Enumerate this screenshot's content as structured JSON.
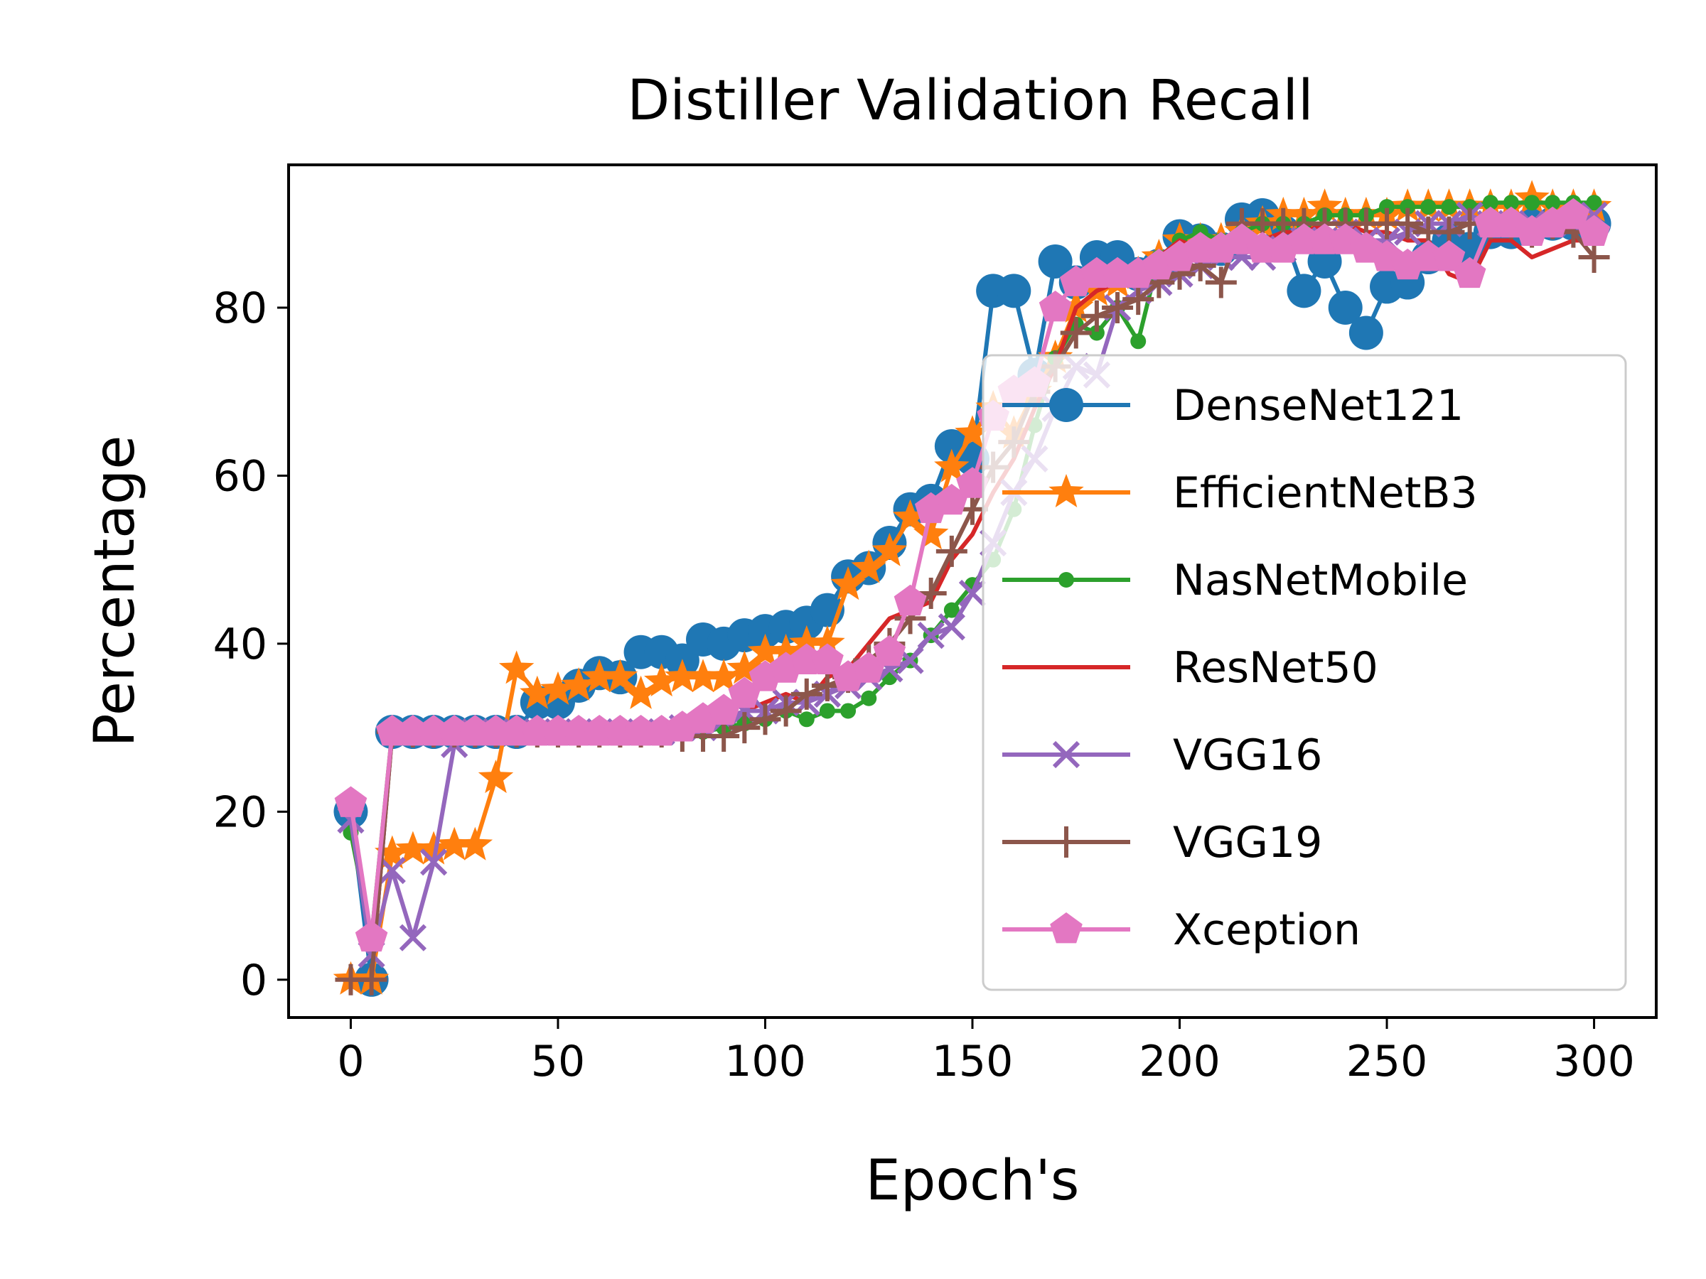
{
  "chart_data": {
    "type": "line",
    "title": "Distiller Validation Recall",
    "xlabel": "Epoch's",
    "ylabel": "Percentage",
    "xlim": [
      -15,
      315
    ],
    "ylim": [
      -4.5,
      97
    ],
    "xticks": [
      0,
      50,
      100,
      150,
      200,
      250,
      300
    ],
    "yticks": [
      0,
      20,
      40,
      60,
      80
    ],
    "grid": false,
    "legend_position": "center-right",
    "series": [
      {
        "name": "DenseNet121",
        "color": "#1f77b4",
        "marker": "circle",
        "x": [
          0,
          5,
          10,
          15,
          20,
          25,
          30,
          35,
          40,
          45,
          50,
          55,
          60,
          65,
          70,
          75,
          80,
          85,
          90,
          95,
          100,
          105,
          110,
          115,
          120,
          125,
          130,
          135,
          140,
          145,
          150,
          155,
          160,
          165,
          170,
          175,
          180,
          185,
          190,
          195,
          200,
          205,
          210,
          215,
          220,
          225,
          230,
          235,
          240,
          245,
          250,
          255,
          260,
          265,
          270,
          275,
          280,
          285,
          290,
          295,
          300
        ],
        "y": [
          20,
          0,
          29.5,
          29.5,
          29.5,
          29.5,
          29.5,
          29.5,
          29.5,
          33,
          33,
          35,
          36.5,
          36,
          39,
          39,
          38,
          40.5,
          40,
          41,
          41.5,
          42,
          42.5,
          44,
          48,
          49,
          52,
          56,
          57,
          63.5,
          62,
          82,
          82,
          72,
          85.5,
          83,
          86,
          86,
          84,
          85,
          88.5,
          88,
          87,
          90.5,
          91,
          89,
          82,
          85.5,
          80,
          77,
          82.5,
          83,
          86,
          88,
          87,
          89,
          89,
          90,
          90,
          90,
          90
        ]
      },
      {
        "name": "EfficientNetB3",
        "color": "#ff7f0e",
        "marker": "star",
        "x": [
          0,
          5,
          10,
          15,
          20,
          25,
          30,
          35,
          40,
          45,
          50,
          55,
          60,
          65,
          70,
          75,
          80,
          85,
          90,
          95,
          100,
          105,
          110,
          115,
          120,
          125,
          130,
          135,
          140,
          145,
          150,
          155,
          160,
          165,
          170,
          175,
          180,
          185,
          190,
          195,
          200,
          205,
          210,
          215,
          220,
          225,
          230,
          235,
          240,
          245,
          250,
          255,
          260,
          265,
          270,
          275,
          280,
          285,
          290,
          295,
          300
        ],
        "y": [
          0,
          0,
          15,
          15.5,
          15.5,
          16,
          16,
          24,
          37,
          34,
          34.5,
          35,
          36,
          36,
          34,
          35.5,
          36,
          36,
          36,
          37,
          39,
          39,
          40,
          40,
          47,
          49,
          51,
          55,
          53,
          61,
          65,
          68,
          65,
          70,
          74,
          80,
          82,
          83,
          84,
          86,
          88,
          88,
          88,
          89,
          90,
          91,
          91,
          92,
          91,
          91,
          91,
          92,
          92,
          92,
          92,
          92,
          92,
          93,
          92,
          92,
          92
        ]
      },
      {
        "name": "NasNetMobile",
        "color": "#2ca02c",
        "marker": "point",
        "x": [
          0,
          5,
          10,
          15,
          20,
          25,
          30,
          35,
          40,
          45,
          50,
          55,
          60,
          65,
          70,
          75,
          80,
          85,
          90,
          95,
          100,
          105,
          110,
          115,
          120,
          125,
          130,
          135,
          140,
          145,
          150,
          155,
          160,
          165,
          170,
          175,
          180,
          185,
          190,
          195,
          200,
          205,
          210,
          215,
          220,
          225,
          230,
          235,
          240,
          245,
          250,
          255,
          260,
          265,
          270,
          275,
          280,
          285,
          290,
          295,
          300
        ],
        "y": [
          17.5,
          5,
          29.5,
          29.5,
          29.5,
          29.5,
          29.5,
          29.5,
          29.5,
          29.5,
          29.5,
          29.5,
          29.5,
          29.5,
          29.5,
          29.5,
          29.5,
          29.5,
          30,
          30.5,
          31,
          32,
          31,
          32,
          32,
          33.5,
          36,
          38,
          41,
          44,
          47,
          50,
          56,
          66,
          74,
          78,
          77,
          80,
          76,
          86,
          88,
          89,
          88,
          89,
          90,
          90,
          90,
          91,
          91,
          91,
          92,
          92,
          92,
          92,
          92,
          92.5,
          92.5,
          92.5,
          92.5,
          92.5,
          92.5
        ]
      },
      {
        "name": "ResNet50",
        "color": "#d62728",
        "marker": "none",
        "x": [
          0,
          5,
          10,
          15,
          20,
          25,
          30,
          35,
          40,
          45,
          50,
          55,
          60,
          65,
          70,
          75,
          80,
          85,
          90,
          95,
          100,
          105,
          110,
          115,
          120,
          125,
          130,
          135,
          140,
          145,
          150,
          155,
          160,
          165,
          170,
          175,
          180,
          185,
          190,
          195,
          200,
          205,
          210,
          215,
          220,
          225,
          230,
          235,
          240,
          245,
          250,
          255,
          260,
          265,
          270,
          275,
          280,
          285,
          290,
          295,
          300
        ],
        "y": [
          0,
          0,
          29.5,
          29.5,
          29.5,
          29.5,
          29.5,
          29.5,
          29.5,
          29.5,
          29.5,
          29.5,
          29.5,
          29.5,
          29.5,
          29.5,
          30,
          30,
          31,
          32,
          33,
          34,
          33,
          36,
          37,
          40,
          43,
          44,
          45,
          50,
          53,
          58,
          62,
          68,
          73,
          80,
          82,
          83,
          84,
          86,
          88,
          87,
          87,
          88,
          88,
          89,
          89,
          90,
          90,
          89,
          89,
          88,
          88,
          84,
          83,
          88,
          88,
          86,
          87,
          88,
          88
        ]
      },
      {
        "name": "VGG16",
        "color": "#9467bd",
        "marker": "x",
        "x": [
          0,
          5,
          10,
          15,
          20,
          25,
          30,
          35,
          40,
          45,
          50,
          55,
          60,
          65,
          70,
          75,
          80,
          85,
          90,
          95,
          100,
          105,
          110,
          115,
          120,
          125,
          130,
          135,
          140,
          145,
          150,
          155,
          160,
          165,
          170,
          175,
          180,
          185,
          190,
          195,
          200,
          205,
          210,
          215,
          220,
          225,
          230,
          235,
          240,
          245,
          250,
          255,
          260,
          265,
          270,
          275,
          280,
          285,
          290,
          295,
          300
        ],
        "y": [
          19,
          3,
          13,
          5,
          14,
          28,
          29.5,
          29.5,
          29.5,
          29.5,
          29.5,
          29.5,
          29.5,
          29.5,
          29.5,
          29.5,
          30,
          30,
          31,
          32,
          32,
          33,
          33,
          34,
          35,
          36,
          37,
          38,
          41,
          42,
          46,
          52,
          58,
          62,
          68,
          73,
          72,
          80,
          82,
          83,
          84,
          85,
          86,
          86,
          86,
          87,
          88,
          88,
          89,
          88,
          88,
          89,
          90,
          90,
          91,
          90,
          90,
          90,
          90,
          90,
          91
        ]
      },
      {
        "name": "VGG19",
        "color": "#8c564b",
        "marker": "plus",
        "x": [
          0,
          5,
          10,
          15,
          20,
          25,
          30,
          35,
          40,
          45,
          50,
          55,
          60,
          65,
          70,
          75,
          80,
          85,
          90,
          95,
          100,
          105,
          110,
          115,
          120,
          125,
          130,
          135,
          140,
          145,
          150,
          155,
          160,
          165,
          170,
          175,
          180,
          185,
          190,
          195,
          200,
          205,
          210,
          215,
          220,
          225,
          230,
          235,
          240,
          245,
          250,
          255,
          260,
          265,
          270,
          275,
          280,
          285,
          290,
          295,
          300
        ],
        "y": [
          0,
          0,
          29.5,
          29.5,
          29.5,
          29.5,
          29.5,
          29.5,
          29.5,
          29.5,
          29.5,
          29.5,
          29.5,
          29.5,
          29.5,
          29.5,
          29,
          29,
          29,
          30,
          31,
          32,
          34,
          35,
          36,
          38,
          40,
          43,
          46,
          51,
          56,
          61,
          64,
          70,
          73,
          77,
          79,
          80,
          81,
          83,
          84,
          85,
          83,
          90,
          90,
          90,
          90,
          90,
          90,
          90,
          90,
          90,
          89,
          89,
          90,
          90,
          90,
          89,
          90,
          89,
          86
        ]
      },
      {
        "name": "Xception",
        "color": "#e377c2",
        "marker": "pentagon",
        "x": [
          0,
          5,
          10,
          15,
          20,
          25,
          30,
          35,
          40,
          45,
          50,
          55,
          60,
          65,
          70,
          75,
          80,
          85,
          90,
          95,
          100,
          105,
          110,
          115,
          120,
          125,
          130,
          135,
          140,
          145,
          150,
          155,
          160,
          165,
          170,
          175,
          180,
          185,
          190,
          195,
          200,
          205,
          210,
          215,
          220,
          225,
          230,
          235,
          240,
          245,
          250,
          255,
          260,
          265,
          270,
          275,
          280,
          285,
          290,
          295,
          300
        ],
        "y": [
          21,
          5,
          29.5,
          29.5,
          29.5,
          29.5,
          29.5,
          29.5,
          29.5,
          29.5,
          29.5,
          29.5,
          29.5,
          29.5,
          29.5,
          29.5,
          30,
          31,
          32,
          34,
          36,
          37,
          38,
          38,
          36,
          37,
          39,
          45,
          56,
          57,
          59,
          67,
          70,
          71,
          80,
          83,
          84,
          84,
          84,
          85,
          86,
          87,
          87,
          88,
          87,
          87,
          88,
          88,
          88,
          87,
          86,
          85,
          86,
          86,
          84,
          90,
          90,
          89,
          90,
          91,
          89
        ]
      }
    ]
  }
}
